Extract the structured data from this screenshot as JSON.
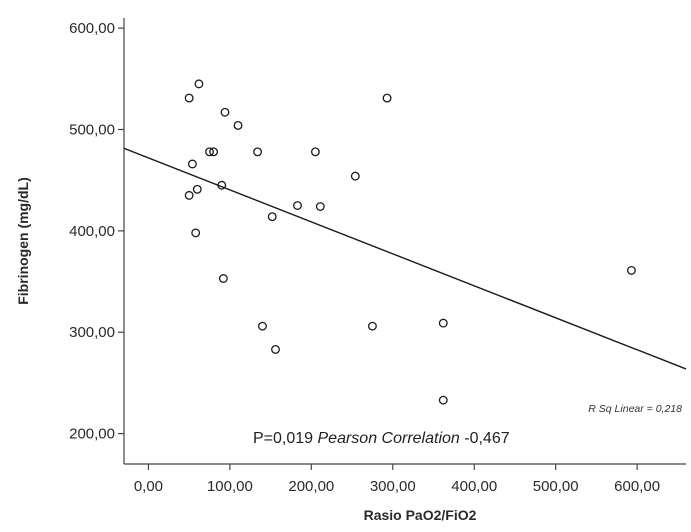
{
  "chart_data": {
    "type": "scatter",
    "xlabel": "Rasio PaO2/FiO2",
    "ylabel": "Fibrinogen (mg/dL)",
    "xlim": [
      -30,
      660
    ],
    "ylim": [
      170,
      610
    ],
    "x_ticks": [
      0,
      100,
      200,
      300,
      400,
      500,
      600
    ],
    "y_ticks": [
      200,
      300,
      400,
      500,
      600
    ],
    "x_tick_labels": [
      "0,00",
      "100,00",
      "200,00",
      "300,00",
      "400,00",
      "500,00",
      "600,00"
    ],
    "y_tick_labels": [
      "200,00",
      "300,00",
      "400,00",
      "500,00",
      "600,00"
    ],
    "grid": false,
    "points": [
      {
        "x": 50,
        "y": 531
      },
      {
        "x": 62,
        "y": 545
      },
      {
        "x": 94,
        "y": 517
      },
      {
        "x": 110,
        "y": 504
      },
      {
        "x": 293,
        "y": 531
      },
      {
        "x": 54,
        "y": 466
      },
      {
        "x": 75,
        "y": 478
      },
      {
        "x": 80,
        "y": 478
      },
      {
        "x": 134,
        "y": 478
      },
      {
        "x": 205,
        "y": 478
      },
      {
        "x": 50,
        "y": 435
      },
      {
        "x": 60,
        "y": 441
      },
      {
        "x": 90,
        "y": 445
      },
      {
        "x": 254,
        "y": 454
      },
      {
        "x": 183,
        "y": 425
      },
      {
        "x": 211,
        "y": 424
      },
      {
        "x": 152,
        "y": 414
      },
      {
        "x": 58,
        "y": 398
      },
      {
        "x": 92,
        "y": 353
      },
      {
        "x": 140,
        "y": 306
      },
      {
        "x": 156,
        "y": 283
      },
      {
        "x": 275,
        "y": 306
      },
      {
        "x": 362,
        "y": 309
      },
      {
        "x": 362,
        "y": 233
      },
      {
        "x": 593,
        "y": 361
      }
    ],
    "fit_line": {
      "slope": -0.3155,
      "intercept": 472,
      "x_start": -30,
      "x_end": 660
    },
    "r_squared_label": "R Sq Linear = 0,218",
    "annotation": {
      "p_text": "P=0,019 ",
      "method_text": "Pearson Correlation",
      "r_text": " -0,467"
    }
  }
}
